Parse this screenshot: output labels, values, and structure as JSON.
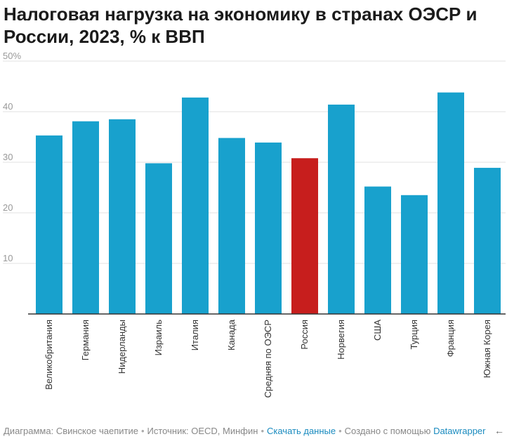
{
  "title": "Налоговая нагрузка на экономику в странах ОЭСР и России, 2023, % к ВВП",
  "chart_data": {
    "type": "bar",
    "title": "Налоговая нагрузка на экономику в странах ОЭСР и России, 2023, % к ВВП",
    "xlabel": "",
    "ylabel": "",
    "ylim": [
      0,
      50
    ],
    "yticks": [
      "10",
      "20",
      "30",
      "40",
      "50%"
    ],
    "ytick_values": [
      10,
      20,
      30,
      40,
      50
    ],
    "grid": true,
    "categories": [
      "Великобритания",
      "Германия",
      "Нидерланды",
      "Израиль",
      "Италия",
      "Канада",
      "Средняя по ОЭСР",
      "Россия",
      "Норвегия",
      "США",
      "Турция",
      "Франция",
      "Южная Корея"
    ],
    "values": [
      35.3,
      38.1,
      38.5,
      29.8,
      42.8,
      34.8,
      33.9,
      30.8,
      41.4,
      25.2,
      23.5,
      43.8,
      28.9
    ],
    "colors": {
      "default": "#18a1cd",
      "highlight": "#c71e1d",
      "highlight_category": "Россия"
    }
  },
  "footer": {
    "chart_credit": "Диаграмма: Свинское чаепитие",
    "source": "Источник: OECD, Минфин",
    "download_link": "Скачать данные",
    "created_with": "Создано с помощью",
    "tool_link": "Datawrapper",
    "back_icon": "left-arrow-icon"
  }
}
